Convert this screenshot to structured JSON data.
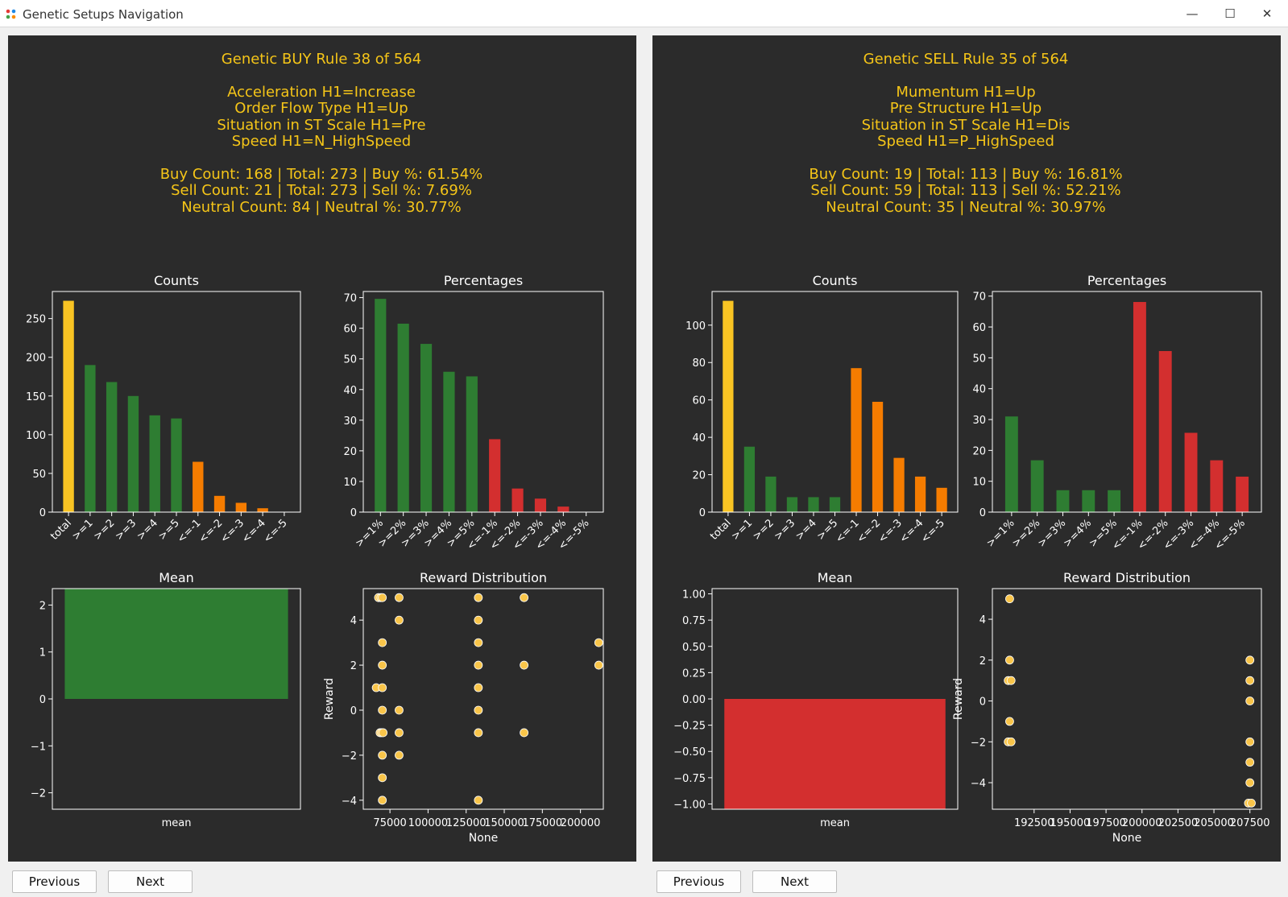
{
  "window": {
    "title": "Genetic Setups Navigation",
    "minimize_glyph": "—",
    "maximize_glyph": "☐",
    "close_glyph": "✕"
  },
  "colors": {
    "panel_bg": "#2b2b2b",
    "header_text": "#f5c518",
    "bar_total": "#f9c423",
    "bar_positive": "#2e7d32",
    "bar_orange": "#f57c00",
    "bar_red": "#d32f2f",
    "scatter": "#f9c54a",
    "axes": "#ffffff"
  },
  "panels": [
    {
      "header": {
        "title": "Genetic BUY Rule 38 of 564",
        "conditions": [
          "Acceleration  H1=Increase",
          "Order Flow Type  H1=Up",
          "Situation in ST Scale  H1=Pre",
          "Speed  H1=N_HighSpeed"
        ],
        "stats": [
          "Buy Count: 168 | Total: 273 | Buy %: 61.54%",
          "Sell Count: 21 | Total: 273 | Sell %: 7.69%",
          "Neutral Count: 84 | Neutral %: 30.77%"
        ]
      },
      "buttons": {
        "previous": "Previous",
        "next": "Next"
      },
      "chart_data": [
        {
          "type": "bar",
          "title": "Counts",
          "categories": [
            "total",
            ">=1",
            ">=2",
            ">=3",
            ">=4",
            ">=5",
            "<=-1",
            "<=-2",
            "<=-3",
            "<=-4",
            "<=-5"
          ],
          "values": [
            273,
            190,
            168,
            150,
            125,
            121,
            65,
            21,
            12,
            5,
            0
          ],
          "colors": [
            "#f9c423",
            "#2e7d32",
            "#2e7d32",
            "#2e7d32",
            "#2e7d32",
            "#2e7d32",
            "#f57c00",
            "#f57c00",
            "#f57c00",
            "#f57c00",
            "#f57c00"
          ],
          "ylim": [
            0,
            285
          ],
          "yticks": [
            0,
            50,
            100,
            150,
            200,
            250
          ]
        },
        {
          "type": "bar",
          "title": "Percentages",
          "categories": [
            ">=1%",
            ">=2%",
            ">=3%",
            ">=4%",
            ">=5%",
            "<=-1%",
            "<=-2%",
            "<=-3%",
            "<=-4%",
            "<=-5%"
          ],
          "values": [
            69.6,
            61.5,
            54.9,
            45.8,
            44.3,
            23.8,
            7.7,
            4.4,
            1.8,
            0
          ],
          "colors": [
            "#2e7d32",
            "#2e7d32",
            "#2e7d32",
            "#2e7d32",
            "#2e7d32",
            "#d32f2f",
            "#d32f2f",
            "#d32f2f",
            "#d32f2f",
            "#d32f2f"
          ],
          "ylim": [
            0,
            72
          ],
          "yticks": [
            0,
            10,
            20,
            30,
            40,
            50,
            60,
            70
          ]
        },
        {
          "type": "bar",
          "title": "Mean",
          "categories": [
            "mean"
          ],
          "xlabel": "mean",
          "values": [
            2.35
          ],
          "colors": [
            "#2e7d32"
          ],
          "ylim": [
            -2.35,
            2.35
          ],
          "yticks": [
            -2,
            -1,
            0,
            1,
            2
          ],
          "ytick_labels": [
            "−2",
            "−1",
            "0",
            "1",
            "2"
          ]
        },
        {
          "type": "scatter",
          "title": "Reward Distribution",
          "xlabel": "None",
          "ylabel": "Reward",
          "xlim": [
            57500,
            215000
          ],
          "ylim": [
            -4.4,
            5.4
          ],
          "xticks": [
            75000,
            100000,
            125000,
            150000,
            175000,
            200000
          ],
          "xtick_labels": [
            "75000",
            "100000",
            "125000",
            "150000",
            "175000",
            "200000"
          ],
          "yticks": [
            -4,
            -2,
            0,
            2,
            4
          ],
          "ytick_labels": [
            "−4",
            "−2",
            "0",
            "2",
            "4"
          ],
          "points": [
            [
              67500,
              5
            ],
            [
              69000,
              5
            ],
            [
              70000,
              5
            ],
            [
              70000,
              3
            ],
            [
              70000,
              2
            ],
            [
              66000,
              1
            ],
            [
              70000,
              1
            ],
            [
              70000,
              0
            ],
            [
              68500,
              -1
            ],
            [
              69500,
              -1
            ],
            [
              70500,
              -1
            ],
            [
              70000,
              -2
            ],
            [
              70000,
              -3
            ],
            [
              70000,
              -4
            ],
            [
              81000,
              5
            ],
            [
              81000,
              4
            ],
            [
              81000,
              0
            ],
            [
              81000,
              -1
            ],
            [
              81000,
              -2
            ],
            [
              133000,
              5
            ],
            [
              133000,
              4
            ],
            [
              133000,
              3
            ],
            [
              133000,
              2
            ],
            [
              133000,
              1
            ],
            [
              133000,
              0
            ],
            [
              133000,
              -1
            ],
            [
              133000,
              -4
            ],
            [
              163000,
              5
            ],
            [
              163000,
              2
            ],
            [
              163000,
              -1
            ],
            [
              212000,
              3
            ],
            [
              212000,
              2
            ]
          ]
        }
      ]
    },
    {
      "header": {
        "title": "Genetic SELL Rule 35 of 564",
        "conditions": [
          "Mumentum  H1=Up",
          "Pre Structure  H1=Up",
          "Situation in ST Scale  H1=Dis",
          "Speed  H1=P_HighSpeed"
        ],
        "stats": [
          "Buy Count: 19 | Total: 113 | Buy %: 16.81%",
          "Sell Count: 59 | Total: 113 | Sell %: 52.21%",
          "Neutral Count: 35 | Neutral %: 30.97%"
        ]
      },
      "buttons": {
        "previous": "Previous",
        "next": "Next"
      },
      "chart_data": [
        {
          "type": "bar",
          "title": "Counts",
          "categories": [
            "total",
            ">=1",
            ">=2",
            ">=3",
            ">=4",
            ">=5",
            "<=-1",
            "<=-2",
            "<=-3",
            "<=-4",
            "<=-5"
          ],
          "values": [
            113,
            35,
            19,
            8,
            8,
            8,
            77,
            59,
            29,
            19,
            13
          ],
          "colors": [
            "#f9c423",
            "#2e7d32",
            "#2e7d32",
            "#2e7d32",
            "#2e7d32",
            "#2e7d32",
            "#f57c00",
            "#f57c00",
            "#f57c00",
            "#f57c00",
            "#f57c00"
          ],
          "ylim": [
            0,
            118
          ],
          "yticks": [
            0,
            20,
            40,
            60,
            80,
            100
          ]
        },
        {
          "type": "bar",
          "title": "Percentages",
          "categories": [
            ">=1%",
            ">=2%",
            ">=3%",
            ">=4%",
            ">=5%",
            "<=-1%",
            "<=-2%",
            "<=-3%",
            "<=-4%",
            "<=-5%"
          ],
          "values": [
            31,
            16.8,
            7.1,
            7.1,
            7.1,
            68.1,
            52.2,
            25.7,
            16.8,
            11.5
          ],
          "colors": [
            "#2e7d32",
            "#2e7d32",
            "#2e7d32",
            "#2e7d32",
            "#2e7d32",
            "#d32f2f",
            "#d32f2f",
            "#d32f2f",
            "#d32f2f",
            "#d32f2f"
          ],
          "ylim": [
            0,
            71.5
          ],
          "yticks": [
            0,
            10,
            20,
            30,
            40,
            50,
            60,
            70
          ]
        },
        {
          "type": "bar",
          "title": "Mean",
          "categories": [
            "mean"
          ],
          "xlabel": "mean",
          "values": [
            -1.05
          ],
          "colors": [
            "#d32f2f"
          ],
          "ylim": [
            -1.05,
            1.05
          ],
          "yticks": [
            -1,
            -0.75,
            -0.5,
            -0.25,
            0,
            0.25,
            0.5,
            0.75,
            1
          ],
          "ytick_labels": [
            "−1.00",
            "−0.75",
            "−0.50",
            "−0.25",
            "0.00",
            "0.25",
            "0.50",
            "0.75",
            "1.00"
          ]
        },
        {
          "type": "scatter",
          "title": "Reward Distribution",
          "xlabel": "None",
          "ylabel": "Reward",
          "xlim": [
            189600,
            208300
          ],
          "ylim": [
            -5.3,
            5.5
          ],
          "xticks": [
            192500,
            195000,
            197500,
            200000,
            202500,
            205000,
            207500
          ],
          "xtick_labels": [
            "192500",
            "195000",
            "197500",
            "200000",
            "202500",
            "205000",
            "207500"
          ],
          "yticks": [
            -4,
            -2,
            0,
            2,
            4
          ],
          "ytick_labels": [
            "−4",
            "−2",
            "0",
            "2",
            "4"
          ],
          "points": [
            [
              190800,
              5
            ],
            [
              190800,
              2
            ],
            [
              190700,
              1
            ],
            [
              190900,
              1
            ],
            [
              190800,
              -1
            ],
            [
              190700,
              -2
            ],
            [
              190900,
              -2
            ],
            [
              207500,
              2
            ],
            [
              207500,
              1
            ],
            [
              207500,
              0
            ],
            [
              207500,
              -2
            ],
            [
              207500,
              -3
            ],
            [
              207500,
              -4
            ],
            [
              207400,
              -5
            ],
            [
              207600,
              -5
            ]
          ]
        }
      ]
    }
  ]
}
